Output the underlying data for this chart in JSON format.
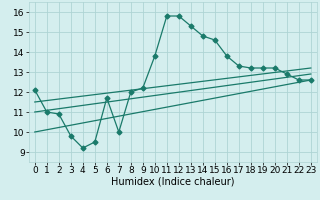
{
  "line1_x": [
    0,
    1,
    2,
    3,
    4,
    5,
    6,
    7,
    8,
    9,
    10,
    11,
    12,
    13,
    14,
    15,
    16,
    17,
    18,
    19,
    20,
    21,
    22,
    23
  ],
  "line1_y": [
    12.1,
    11.0,
    10.9,
    9.8,
    9.2,
    9.5,
    11.7,
    10.0,
    12.0,
    12.2,
    13.8,
    15.8,
    15.8,
    15.3,
    14.8,
    14.6,
    13.8,
    13.3,
    13.2,
    13.2,
    13.2,
    12.9,
    12.6,
    12.6
  ],
  "line2_x": [
    0,
    23
  ],
  "line2_y": [
    11.0,
    12.9
  ],
  "line3_x": [
    0,
    23
  ],
  "line3_y": [
    11.5,
    13.2
  ],
  "line4_x": [
    0,
    23
  ],
  "line4_y": [
    10.0,
    12.6
  ],
  "color": "#1a7a6a",
  "bg_color": "#d4eeee",
  "grid_color": "#aed4d4",
  "xlabel": "Humidex (Indice chaleur)",
  "xlim": [
    -0.5,
    23.5
  ],
  "ylim": [
    8.5,
    16.5
  ],
  "xticks": [
    0,
    1,
    2,
    3,
    4,
    5,
    6,
    7,
    8,
    9,
    10,
    11,
    12,
    13,
    14,
    15,
    16,
    17,
    18,
    19,
    20,
    21,
    22,
    23
  ],
  "yticks": [
    9,
    10,
    11,
    12,
    13,
    14,
    15,
    16
  ],
  "xlabel_fontsize": 7,
  "tick_fontsize": 6.5,
  "marker": "D",
  "markersize": 2.5,
  "linewidth": 0.9
}
